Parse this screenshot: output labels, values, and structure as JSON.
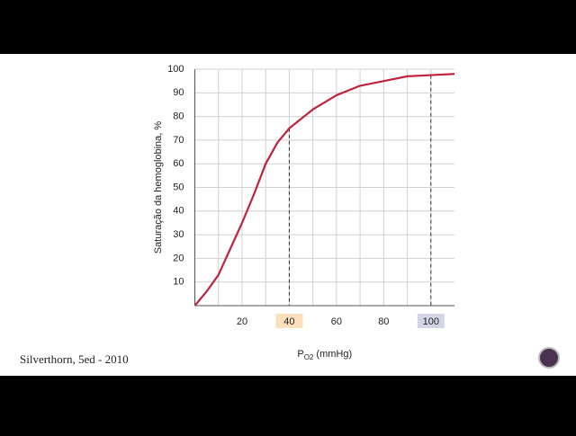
{
  "chart_data": {
    "type": "line",
    "ylabel": "Saturação da hemoglobina, %",
    "xlabel": {
      "text": "P",
      "subscript": "O2",
      "suffix": " (mmHg)"
    },
    "x": [
      0,
      5,
      10,
      15,
      20,
      25,
      30,
      35,
      40,
      50,
      60,
      70,
      80,
      90,
      100,
      110
    ],
    "series": [
      {
        "color": "#c0223f",
        "values": [
          0,
          6,
          13,
          24,
          35,
          47,
          60,
          69,
          75,
          83,
          89,
          93,
          95,
          97,
          97.5,
          98
        ]
      }
    ],
    "xlim": [
      0,
      110
    ],
    "ylim": [
      0,
      100
    ],
    "xticks": [
      20,
      40,
      60,
      80,
      100
    ],
    "yticks": [
      10,
      20,
      30,
      40,
      50,
      60,
      70,
      80,
      90,
      100
    ],
    "grid": true,
    "highlights": [
      {
        "x": 40,
        "y": 75,
        "color": "#fce0bd"
      },
      {
        "x": 100,
        "y": 97.5,
        "color": "#d3d5e6"
      }
    ]
  },
  "source": "Silverthorn, 5ed - 2010"
}
